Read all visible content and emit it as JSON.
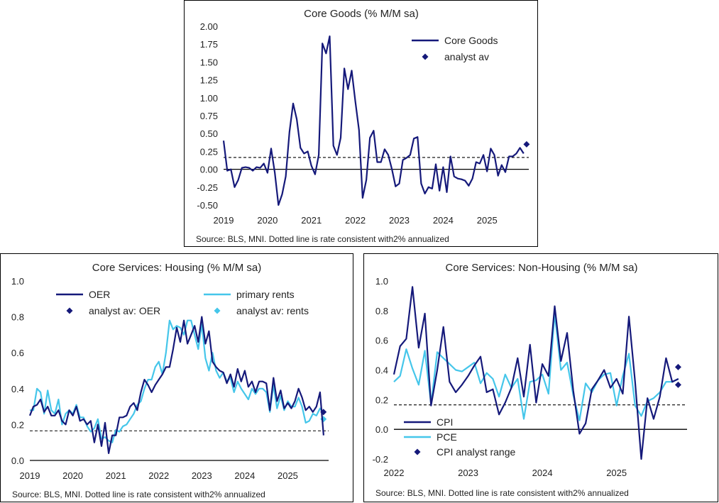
{
  "colors": {
    "navy": "#15197a",
    "light": "#45c6ea",
    "axis": "#000000",
    "dotted": "#000000"
  },
  "chart_data": [
    {
      "type": "line",
      "title": "Core Goods (% M/M sa)",
      "source": "Source: BLS, MNI. Dotted line is rate consistent with2% annualized",
      "ylim": [
        -0.5,
        2.0
      ],
      "yticks": [
        "2.00",
        "1.75",
        "1.50",
        "1.25",
        "1.00",
        "0.75",
        "0.50",
        "0.25",
        "0.00",
        "-0.25",
        "-0.50"
      ],
      "ytick_values": [
        2.0,
        1.75,
        1.5,
        1.25,
        1.0,
        0.75,
        0.5,
        0.25,
        0.0,
        -0.25,
        -0.5
      ],
      "xlim": [
        2019.0,
        2025.95
      ],
      "xticks": [
        "2019",
        "2020",
        "2021",
        "2022",
        "2023",
        "2024",
        "2025"
      ],
      "xtick_values": [
        2019,
        2020,
        2021,
        2022,
        2023,
        2024,
        2025
      ],
      "reference_line": 0.165,
      "legend": {
        "placement": "top-right",
        "entries": [
          "Core Goods",
          "analyst av"
        ]
      },
      "series": [
        {
          "name": "Core Goods",
          "style": "line",
          "color": "navy",
          "x_start": 2019.0,
          "step": 0.0833333,
          "values": [
            0.4,
            -0.02,
            0.0,
            -0.25,
            -0.15,
            0.02,
            0.03,
            0.02,
            -0.02,
            0.03,
            0.02,
            0.08,
            -0.05,
            0.29,
            -0.05,
            -0.6,
            -0.35,
            -0.1,
            0.52,
            0.92,
            0.7,
            0.3,
            0.22,
            0.25,
            0.05,
            -0.07,
            0.2,
            1.76,
            1.62,
            1.86,
            0.33,
            0.2,
            0.44,
            1.41,
            1.12,
            1.38,
            0.95,
            0.55,
            -0.4,
            -0.15,
            0.44,
            0.54,
            0.1,
            0.1,
            0.28,
            0.2,
            0.0,
            -0.24,
            -0.2,
            0.13,
            0.16,
            0.2,
            0.43,
            0.45,
            -0.2,
            -0.34,
            -0.25,
            -0.27,
            0.07,
            -0.3,
            0.03,
            -0.32,
            0.18,
            -0.1,
            -0.13,
            -0.14,
            -0.16,
            -0.23,
            -0.13,
            0.1,
            0.08,
            0.2,
            -0.03,
            0.29,
            0.2,
            -0.09,
            0.06,
            -0.04,
            0.18,
            0.18,
            0.22,
            0.3,
            0.22
          ]
        },
        {
          "name": "analyst av",
          "style": "marker",
          "color": "navy",
          "points": [
            [
              2025.9,
              0.35
            ]
          ]
        }
      ]
    },
    {
      "type": "line",
      "title": "Core Services: Housing (% M/M sa)",
      "source": "Source: BLS, MNI. Dotted line is rate consistent with2% annualized",
      "ylim": [
        0.0,
        1.0
      ],
      "yticks": [
        "1.0",
        "0.8",
        "0.6",
        "0.4",
        "0.2",
        "0.0"
      ],
      "ytick_values": [
        1.0,
        0.8,
        0.6,
        0.4,
        0.2,
        0.0
      ],
      "xlim": [
        2019.0,
        2025.95
      ],
      "xticks": [
        "2019",
        "2020",
        "2021",
        "2022",
        "2023",
        "2024",
        "2025"
      ],
      "xtick_values": [
        2019,
        2020,
        2021,
        2022,
        2023,
        2024,
        2025
      ],
      "reference_line": 0.165,
      "legend": {
        "placement": "top",
        "entries": [
          "OER",
          "primary rents",
          "analyst av: OER",
          "analyst av: rents"
        ]
      },
      "series": [
        {
          "name": "OER",
          "style": "line",
          "color": "navy",
          "x_start": 2019.0,
          "step": 0.0833333,
          "values": [
            0.25,
            0.3,
            0.31,
            0.34,
            0.27,
            0.3,
            0.25,
            0.25,
            0.28,
            0.22,
            0.2,
            0.28,
            0.25,
            0.3,
            0.22,
            0.23,
            0.2,
            0.22,
            0.1,
            0.2,
            0.08,
            0.21,
            0.04,
            0.14,
            0.14,
            0.24,
            0.24,
            0.25,
            0.3,
            0.32,
            0.28,
            0.38,
            0.45,
            0.42,
            0.38,
            0.42,
            0.45,
            0.48,
            0.52,
            0.52,
            0.62,
            0.74,
            0.66,
            0.78,
            0.65,
            0.7,
            0.75,
            0.66,
            0.8,
            0.65,
            0.72,
            0.55,
            0.52,
            0.5,
            0.49,
            0.43,
            0.48,
            0.41,
            0.51,
            0.44,
            0.5,
            0.41,
            0.44,
            0.38,
            0.44,
            0.44,
            0.43,
            0.28,
            0.46,
            0.33,
            0.39,
            0.29,
            0.32,
            0.29,
            0.33,
            0.4,
            0.35,
            0.28,
            0.3,
            0.27,
            0.3,
            0.38,
            0.14
          ]
        },
        {
          "name": "primary rents",
          "style": "line",
          "color": "light",
          "x_start": 2019.0,
          "step": 0.0833333,
          "values": [
            0.28,
            0.28,
            0.4,
            0.38,
            0.26,
            0.39,
            0.28,
            0.26,
            0.34,
            0.2,
            0.26,
            0.28,
            0.26,
            0.31,
            0.24,
            0.24,
            0.19,
            0.16,
            0.18,
            0.23,
            0.12,
            0.13,
            0.11,
            0.1,
            0.17,
            0.16,
            0.19,
            0.2,
            0.23,
            0.26,
            0.31,
            0.33,
            0.4,
            0.45,
            0.45,
            0.52,
            0.55,
            0.48,
            0.6,
            0.78,
            0.73,
            0.75,
            0.74,
            0.7,
            0.78,
            0.78,
            0.7,
            0.62,
            0.76,
            0.57,
            0.5,
            0.6,
            0.5,
            0.46,
            0.49,
            0.44,
            0.46,
            0.38,
            0.44,
            0.4,
            0.37,
            0.34,
            0.4,
            0.37,
            0.4,
            0.4,
            0.38,
            0.27,
            0.42,
            0.29,
            0.36,
            0.28,
            0.33,
            0.3,
            0.3,
            0.35,
            0.3,
            0.21,
            0.22,
            0.26,
            0.25,
            0.29,
            0.26
          ]
        },
        {
          "name": "analyst av: OER",
          "style": "marker",
          "color": "navy",
          "points": [
            [
              2025.83,
              0.27
            ]
          ]
        },
        {
          "name": "analyst av: rents",
          "style": "marker",
          "color": "light",
          "points": [
            [
              2025.83,
              0.23
            ]
          ]
        }
      ]
    },
    {
      "type": "line",
      "title": "Core Services: Non-Housing (% M/M sa)",
      "source": "Source: BLS, MNI. Dotted line is rate consistent with2% annualized",
      "ylim": [
        -0.2,
        1.0
      ],
      "yticks": [
        "1.0",
        "0.8",
        "0.6",
        "0.4",
        "0.2",
        "0.0",
        "-0.2"
      ],
      "ytick_values": [
        1.0,
        0.8,
        0.6,
        0.4,
        0.2,
        0.0,
        -0.2
      ],
      "xlim": [
        2022.0,
        2025.95
      ],
      "xticks": [
        "2022",
        "2023",
        "2024",
        "2025"
      ],
      "xtick_values": [
        2022,
        2023,
        2024,
        2025
      ],
      "reference_line": 0.165,
      "legend": {
        "placement": "bottom-left",
        "entries": [
          "CPI",
          "PCE",
          "CPI analyst range"
        ]
      },
      "series": [
        {
          "name": "CPI",
          "style": "line",
          "color": "navy",
          "x_start": 2022.0,
          "step": 0.0833333,
          "values": [
            0.37,
            0.56,
            0.61,
            0.96,
            0.55,
            0.78,
            0.16,
            0.4,
            0.69,
            0.32,
            0.25,
            0.3,
            0.36,
            0.43,
            0.49,
            0.25,
            0.27,
            0.1,
            0.18,
            0.28,
            0.48,
            0.22,
            0.57,
            0.18,
            0.44,
            0.36,
            0.83,
            0.46,
            0.65,
            0.26,
            -0.03,
            0.04,
            0.27,
            0.33,
            0.4,
            0.28,
            0.34,
            0.24,
            0.76,
            0.32,
            -0.21,
            0.21,
            0.07,
            0.22,
            0.48,
            0.32,
            0.34
          ]
        },
        {
          "name": "PCE",
          "style": "line",
          "color": "light",
          "x_start": 2022.0,
          "step": 0.0833333,
          "values": [
            0.32,
            0.36,
            0.54,
            0.41,
            0.3,
            0.53,
            0.17,
            0.52,
            0.48,
            0.44,
            0.4,
            0.39,
            0.42,
            0.45,
            0.31,
            0.38,
            0.34,
            0.22,
            0.37,
            0.28,
            0.34,
            0.07,
            0.32,
            0.33,
            0.37,
            0.24,
            0.78,
            0.4,
            0.45,
            0.23,
            0.06,
            0.31,
            0.25,
            0.33,
            0.37,
            0.38,
            0.16,
            0.36,
            0.51,
            0.16,
            0.09,
            0.19,
            0.21,
            0.25,
            0.32,
            0.32,
            0.34
          ]
        },
        {
          "name": "CPI analyst range",
          "style": "marker",
          "color": "navy",
          "points": [
            [
              2025.83,
              0.42
            ],
            [
              2025.83,
              0.3
            ]
          ]
        }
      ]
    }
  ]
}
